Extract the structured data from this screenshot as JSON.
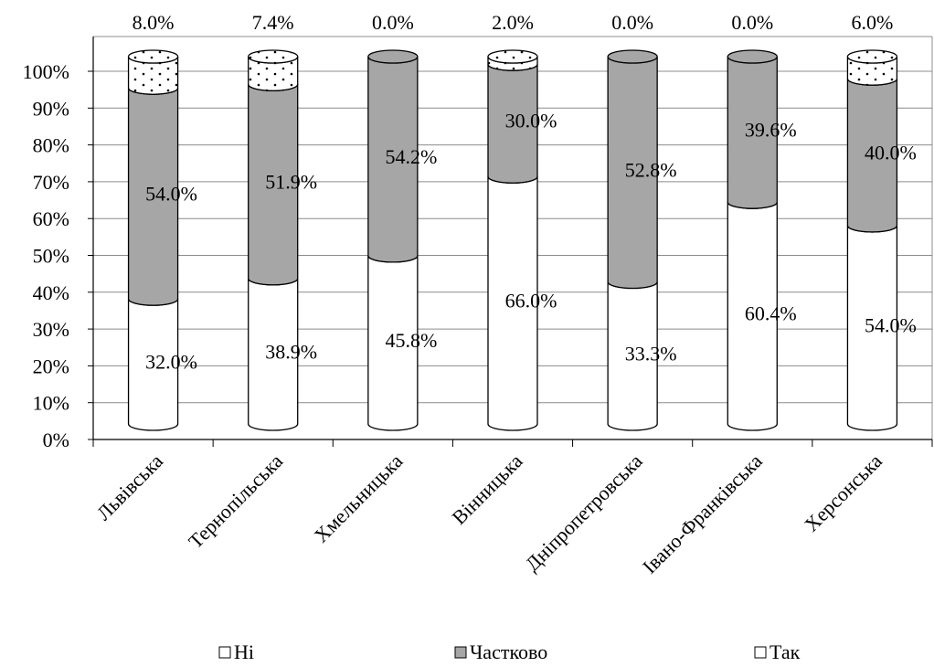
{
  "chart_data": {
    "type": "bar",
    "stacked": true,
    "bar_shape": "cylinder",
    "categories": [
      "Львівська",
      "Тернопільська",
      "Хмельницька",
      "Вінницька",
      "Дніпропетровська",
      "Івано-Франківська",
      "Херсонська"
    ],
    "series": [
      {
        "name": "Ні",
        "values": [
          32.0,
          38.9,
          45.8,
          66.0,
          33.3,
          60.4,
          54.0
        ],
        "labels": [
          "32.0%",
          "38.9%",
          "45.8%",
          "66.0%",
          "33.3%",
          "60.4%",
          "54.0%"
        ],
        "color": "#ffffff",
        "pattern": "none"
      },
      {
        "name": "Частково",
        "values": [
          54.0,
          51.9,
          54.2,
          30.0,
          52.8,
          39.6,
          40.0
        ],
        "labels": [
          "54.0%",
          "51.9%",
          "54.2%",
          "30.0%",
          "52.8%",
          "39.6%",
          "40.0%"
        ],
        "color": "#a6a6a6",
        "pattern": "none"
      },
      {
        "name": "Так",
        "values": [
          8.0,
          7.4,
          0.0,
          2.0,
          0.0,
          0.0,
          6.0
        ],
        "labels": [
          "8.0%",
          "7.4%",
          "0.0%",
          "2.0%",
          "0.0%",
          "0.0%",
          "6.0%"
        ],
        "color": "#ffffff",
        "pattern": "dots"
      }
    ],
    "yticks": [
      "0%",
      "10%",
      "20%",
      "30%",
      "40%",
      "50%",
      "60%",
      "70%",
      "80%",
      "90%",
      "100%"
    ],
    "ylim": [
      0,
      100
    ],
    "grid": true,
    "legend_position": "bottom",
    "title": "",
    "xlabel": "",
    "ylabel": ""
  }
}
